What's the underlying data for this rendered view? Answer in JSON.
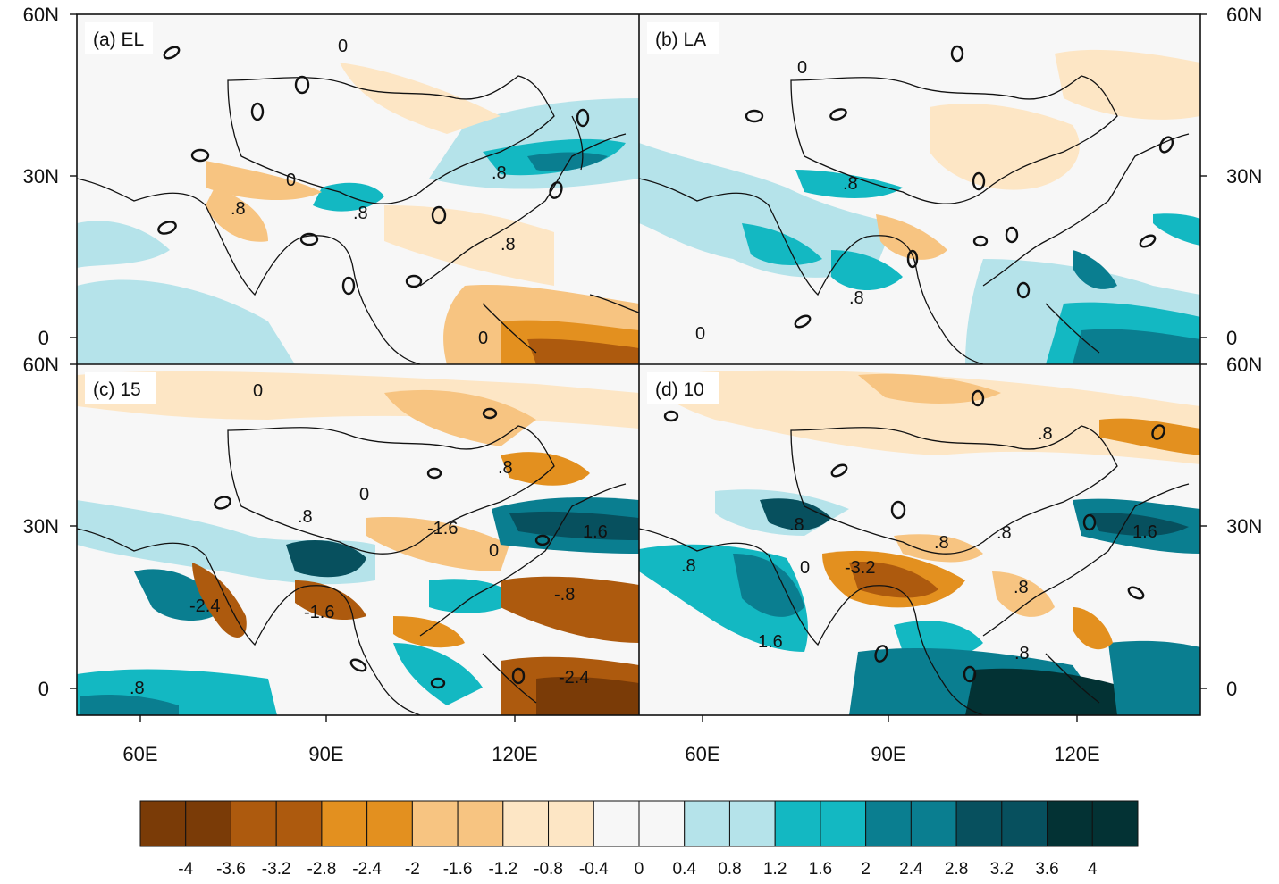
{
  "figure": {
    "panels": [
      {
        "id": "a",
        "label": "(a) EL",
        "contour_labels": [
          "0",
          "0",
          "0",
          "0",
          "0",
          "0",
          "0",
          "0",
          "0",
          ".8",
          ".8",
          ".8",
          ".8",
          "0",
          "0",
          "0",
          "0",
          "0"
        ]
      },
      {
        "id": "b",
        "label": "(b) LA",
        "contour_labels": [
          "0",
          "0",
          "0",
          "0",
          "0",
          "0",
          ".8",
          "0",
          "0",
          "0",
          ".8",
          "0",
          "0",
          "0",
          "0",
          "0"
        ]
      },
      {
        "id": "c",
        "label": "(c) 15",
        "contour_labels": [
          "0",
          "0",
          "0",
          "0",
          ".8",
          "0",
          ".8",
          ".8",
          "-1.6",
          "1.6",
          "0",
          "0",
          "-2.4",
          "-1.6",
          ".8",
          "0",
          "-.8",
          "0",
          "-2.4",
          ".8",
          "0",
          "0",
          "0"
        ]
      },
      {
        "id": "d",
        "label": "(d) 10",
        "contour_labels": [
          "0",
          "0",
          ".8",
          "0",
          "0",
          ".8",
          "0",
          ".8",
          ".8",
          "1.6",
          ".8",
          "0",
          "-3.2",
          "0",
          "0",
          ".8",
          "0",
          "1.6",
          ".8",
          "0",
          "0",
          "0",
          "0",
          "0"
        ]
      }
    ],
    "lat_ticks": [
      "60N",
      "30N",
      "0"
    ],
    "lon_ticks": [
      "60E",
      "90E",
      "120E"
    ],
    "colorbar": {
      "labels": [
        "-4",
        "-3.6",
        "-3.2",
        "-2.8",
        "-2.4",
        "-2",
        "-1.6",
        "-1.2",
        "-0.8",
        "-0.4",
        "0",
        "0.4",
        "0.8",
        "1.2",
        "1.6",
        "2",
        "2.4",
        "2.8",
        "3.2",
        "3.6",
        "4"
      ],
      "colors": [
        "#7a3b07",
        "#7a3b07",
        "#ad5a0e",
        "#ad5a0e",
        "#e3901f",
        "#e3901f",
        "#f7c481",
        "#f7c481",
        "#fde6c5",
        "#fde6c5",
        "#f7f7f7",
        "#f7f7f7",
        "#b5e3ea",
        "#b5e3ea",
        "#13b8c2",
        "#13b8c2",
        "#0a7e90",
        "#0a7e90",
        "#07505e",
        "#07505e",
        "#033234",
        "#033234"
      ]
    }
  }
}
